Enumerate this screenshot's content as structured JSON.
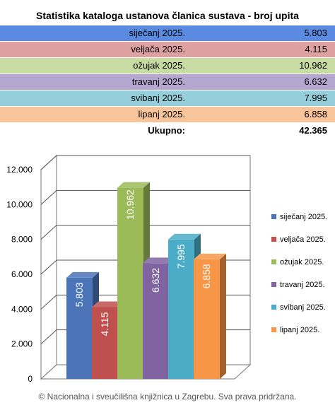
{
  "title": "Statistika kataloga ustanova članica sustava - broj upita",
  "table": {
    "rows": [
      {
        "label": "siječanj 2025.",
        "value": "5.803",
        "bg": "#5a8be0"
      },
      {
        "label": "veljača 2025.",
        "value": "4.115",
        "bg": "#dea0a0"
      },
      {
        "label": "ožujak 2025.",
        "value": "10.962",
        "bg": "#c8dba2"
      },
      {
        "label": "travanj 2025.",
        "value": "6.632",
        "bg": "#b6a7d0"
      },
      {
        "label": "svibanj 2025.",
        "value": "7.995",
        "bg": "#96cfdc"
      },
      {
        "label": "lipanj 2025.",
        "value": "6.858",
        "bg": "#f8c49a"
      }
    ],
    "total_label": "Ukupno:",
    "total_value": "42.365"
  },
  "chart_data": {
    "type": "bar",
    "categories": [
      "siječanj 2025.",
      "veljača 2025.",
      "ožujak 2025.",
      "travanj 2025.",
      "svibanj 2025.",
      "lipanj 2025."
    ],
    "values": [
      5803,
      4115,
      10962,
      6632,
      7995,
      6858
    ],
    "value_labels": [
      "5.803",
      "4.115",
      "10.962",
      "6.632",
      "7.995",
      "6.858"
    ],
    "colors": [
      "#4a73b8",
      "#c0504d",
      "#9bbb59",
      "#8064a2",
      "#4aacc6",
      "#f79646"
    ],
    "ylim": [
      0,
      12000
    ],
    "yticks": [
      0,
      2000,
      4000,
      6000,
      8000,
      10000,
      12000
    ],
    "ytick_labels": [
      "0",
      "2.000",
      "4.000",
      "6.000",
      "8.000",
      "10.000",
      "12.000"
    ],
    "grid": true,
    "legend": "right",
    "style": "3d"
  },
  "footer": "© Nacionalna i sveučilišna knjižnica u Zagrebu. Sva prava pridržana."
}
